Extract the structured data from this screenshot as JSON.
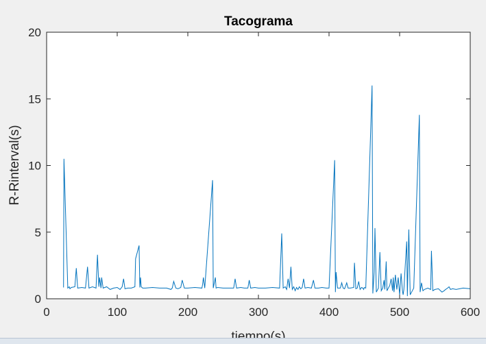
{
  "chart_data": {
    "type": "line",
    "title": "Tacograma",
    "xlabel": "tiempo(s)",
    "ylabel": "R-Rinterval(s)",
    "xlim": [
      0,
      600
    ],
    "ylim": [
      0,
      20
    ],
    "xticks": [
      0,
      100,
      200,
      300,
      400,
      500,
      600
    ],
    "yticks": [
      0,
      5,
      10,
      15,
      20
    ],
    "grid": false,
    "line_color": "#0072bd",
    "series": [
      {
        "x": [
          24,
          24.6,
          30,
          32,
          33,
          35,
          40,
          42,
          44,
          50,
          55,
          58,
          60,
          65,
          70,
          72,
          74,
          75,
          77,
          78,
          80,
          85,
          90,
          95,
          100,
          104,
          107,
          109,
          111,
          115,
          120,
          125,
          126,
          131,
          132,
          133,
          134,
          136,
          140,
          150,
          160,
          170,
          176,
          178,
          180,
          183,
          186,
          190,
          192,
          195,
          200,
          210,
          220,
          221,
          222,
          224,
          235,
          236,
          239,
          240,
          242,
          250,
          260,
          265,
          267,
          269,
          275,
          280,
          285,
          287,
          289,
          295,
          300,
          310,
          320,
          330,
          333,
          335,
          338,
          340,
          342,
          344,
          346,
          348,
          350,
          352,
          354,
          356,
          358,
          360,
          362,
          364,
          366,
          370,
          375,
          378,
          380,
          385,
          390,
          396,
          400,
          408,
          409,
          410,
          412,
          416,
          418,
          420,
          422,
          425,
          427,
          430,
          435,
          436,
          438,
          440,
          442,
          444,
          446,
          448,
          449,
          450,
          452,
          461,
          462,
          464,
          465,
          467,
          470,
          472,
          474,
          476,
          478,
          479,
          481,
          482,
          484,
          486,
          488,
          490,
          491,
          492,
          494,
          496,
          498,
          500,
          502,
          504,
          505,
          506,
          508,
          510,
          511,
          513,
          515,
          518,
          520,
          528,
          529,
          531,
          533,
          535,
          540,
          544,
          545,
          547,
          550,
          555,
          560,
          563,
          565,
          568,
          570,
          572,
          575,
          580,
          590,
          600
        ],
        "values": [
          0.85,
          10.5,
          0.8,
          0.9,
          0.75,
          0.85,
          0.9,
          2.3,
          0.8,
          0.85,
          0.8,
          2.4,
          0.8,
          0.9,
          0.8,
          3.3,
          0.9,
          1.6,
          0.8,
          1.6,
          0.8,
          0.9,
          0.7,
          0.8,
          0.85,
          0.7,
          0.9,
          1.5,
          0.75,
          0.8,
          0.8,
          0.9,
          3.0,
          4.0,
          0.85,
          1.6,
          0.9,
          0.8,
          0.8,
          0.85,
          0.8,
          0.8,
          0.7,
          0.8,
          1.3,
          0.8,
          0.75,
          0.85,
          1.4,
          0.8,
          0.8,
          0.85,
          0.8,
          1.1,
          1.6,
          0.8,
          8.9,
          0.8,
          1.6,
          0.8,
          0.85,
          0.8,
          0.8,
          0.8,
          1.5,
          0.8,
          0.85,
          0.8,
          0.8,
          1.4,
          0.8,
          0.85,
          0.8,
          0.8,
          0.85,
          0.8,
          4.9,
          0.8,
          0.9,
          0.7,
          1.5,
          0.8,
          2.4,
          0.7,
          0.9,
          0.6,
          0.85,
          0.7,
          0.9,
          0.75,
          0.85,
          1.5,
          0.8,
          0.85,
          0.8,
          1.4,
          0.8,
          0.8,
          0.85,
          0.8,
          0.8,
          10.4,
          0.5,
          2.0,
          0.8,
          0.8,
          1.2,
          0.8,
          0.75,
          1.2,
          0.8,
          0.8,
          0.85,
          2.7,
          0.75,
          0.8,
          1.3,
          0.7,
          0.85,
          0.8,
          0.7,
          0.85,
          0.8,
          16.0,
          0.4,
          2.0,
          5.3,
          0.5,
          0.8,
          3.5,
          0.6,
          0.8,
          1.4,
          0.7,
          2.8,
          0.6,
          0.8,
          1.0,
          1.5,
          0.6,
          1.6,
          0.5,
          1.8,
          0.7,
          1.6,
          0.3,
          1.9,
          0.6,
          0.3,
          0.7,
          2.5,
          4.3,
          0.2,
          5.2,
          0.3,
          0.6,
          0.8,
          13.8,
          0.5,
          1.2,
          0.6,
          0.7,
          0.8,
          0.7,
          3.6,
          0.6,
          0.7,
          0.75,
          0.5,
          0.6,
          0.7,
          0.8,
          0.9,
          0.7,
          0.75,
          0.7,
          0.8,
          0.75
        ]
      }
    ]
  }
}
